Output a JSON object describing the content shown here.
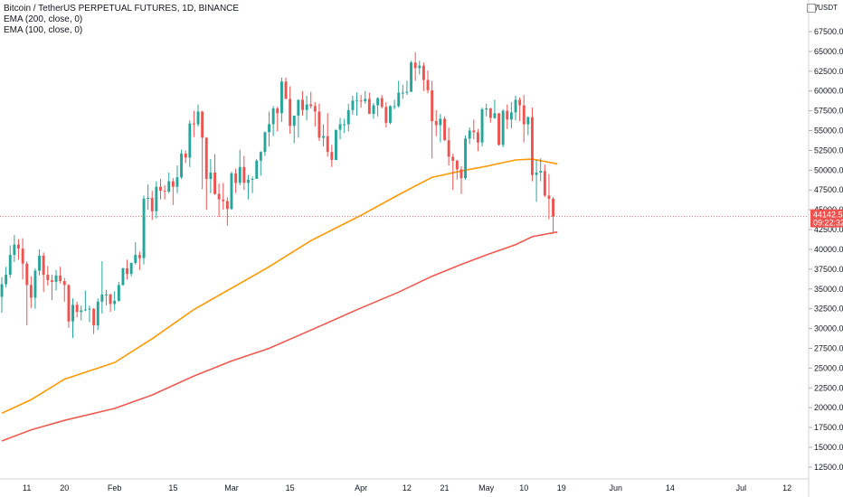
{
  "legend": {
    "title": "Bitcoin / TetherUS PERPETUAL FUTURES, 1D, BINANCE",
    "ema200": "EMA (200, close, 0)",
    "ema100": "EMA (100, close, 0)"
  },
  "currency": "USDT",
  "colors": {
    "up": "#26a69a",
    "down": "#ef5350",
    "ema100": "#ff9800",
    "ema200": "#f05a4f",
    "price_line": "#f06a6a",
    "axis_line": "#d1d4dc"
  },
  "price_label": "44142.51",
  "countdown_label": "09:22:32",
  "chart_data": {
    "type": "candlestick",
    "ylim": [
      11000,
      71500
    ],
    "yticks": [
      12500,
      15000,
      17500,
      20000,
      22500,
      25000,
      27500,
      30000,
      32500,
      35000,
      37500,
      40000,
      42500,
      45000,
      47500,
      50000,
      52500,
      55000,
      57500,
      60000,
      62500,
      65000,
      67500
    ],
    "ytick_labels": [
      "12500.00",
      "15000.00",
      "17500.00",
      "20000.00",
      "22500.00",
      "25000.00",
      "27500.00",
      "30000.00",
      "32500.00",
      "35000.00",
      "37500.00",
      "40000.00",
      "42500.00",
      "45000.00",
      "47500.00",
      "50000.00",
      "52500.00",
      "55000.00",
      "57500.00",
      "60000.00",
      "62500.00",
      "65000.00",
      "67500.00"
    ],
    "ytick_top_partial": "7",
    "xticks": [
      {
        "label": "11",
        "date": "2021-01-11"
      },
      {
        "label": "20",
        "date": "2021-01-20"
      },
      {
        "label": "Feb",
        "date": "2021-02-01"
      },
      {
        "label": "15",
        "date": "2021-02-15"
      },
      {
        "label": "Mar",
        "date": "2021-03-01"
      },
      {
        "label": "15",
        "date": "2021-03-15"
      },
      {
        "label": "Apr",
        "date": "2021-04-01"
      },
      {
        "label": "12",
        "date": "2021-04-12"
      },
      {
        "label": "21",
        "date": "2021-04-21"
      },
      {
        "label": "May",
        "date": "2021-05-01"
      },
      {
        "label": "10",
        "date": "2021-05-10"
      },
      {
        "label": "19",
        "date": "2021-05-19"
      },
      {
        "label": "Jun",
        "date": "2021-06-01"
      },
      {
        "label": "14",
        "date": "2021-06-14"
      },
      {
        "label": "Jul",
        "date": "2021-07-01"
      },
      {
        "label": "12",
        "date": "2021-07-12"
      }
    ],
    "x_start": "2021-01-05",
    "x_end": "2021-07-15",
    "current_price": 44142.51,
    "candles": [
      [
        "2021-01-05",
        34000,
        36500,
        32000,
        35600
      ],
      [
        "2021-01-06",
        35600,
        37800,
        35200,
        36800
      ],
      [
        "2021-01-07",
        36800,
        40500,
        36400,
        39300
      ],
      [
        "2021-01-08",
        39300,
        41800,
        38400,
        40600
      ],
      [
        "2021-01-09",
        40600,
        41300,
        38700,
        40100
      ],
      [
        "2021-01-10",
        40100,
        41400,
        36200,
        38200
      ],
      [
        "2021-01-11",
        38200,
        38500,
        30400,
        35500
      ],
      [
        "2021-01-12",
        35500,
        36600,
        32600,
        33900
      ],
      [
        "2021-01-13",
        33900,
        37600,
        32500,
        37300
      ],
      [
        "2021-01-14",
        37300,
        40000,
        36700,
        39200
      ],
      [
        "2021-01-15",
        39200,
        39600,
        34600,
        36800
      ],
      [
        "2021-01-16",
        36800,
        37900,
        35400,
        36100
      ],
      [
        "2021-01-17",
        36100,
        36800,
        33600,
        35900
      ],
      [
        "2021-01-18",
        35900,
        37400,
        34800,
        36700
      ],
      [
        "2021-01-19",
        36700,
        37800,
        35700,
        36000
      ],
      [
        "2021-01-20",
        36000,
        36400,
        33400,
        35500
      ],
      [
        "2021-01-21",
        35500,
        35600,
        30100,
        30900
      ],
      [
        "2021-01-22",
        30900,
        33800,
        28800,
        33000
      ],
      [
        "2021-01-23",
        33000,
        33400,
        31400,
        32100
      ],
      [
        "2021-01-24",
        32100,
        32900,
        31000,
        32300
      ],
      [
        "2021-01-25",
        32300,
        34800,
        32200,
        32400
      ],
      [
        "2021-01-26",
        32400,
        32900,
        30800,
        32500
      ],
      [
        "2021-01-27",
        32500,
        32600,
        29300,
        30400
      ],
      [
        "2021-01-28",
        30400,
        33800,
        29800,
        33400
      ],
      [
        "2021-01-29",
        33400,
        38500,
        31900,
        34300
      ],
      [
        "2021-01-30",
        34300,
        34900,
        32900,
        34300
      ],
      [
        "2021-01-31",
        34300,
        34400,
        32100,
        33100
      ],
      [
        "2021-02-01",
        33100,
        34700,
        32300,
        33500
      ],
      [
        "2021-02-02",
        33500,
        35900,
        33400,
        35500
      ],
      [
        "2021-02-03",
        35500,
        37700,
        35400,
        37600
      ],
      [
        "2021-02-04",
        37600,
        38700,
        36200,
        36900
      ],
      [
        "2021-02-05",
        36900,
        38300,
        36600,
        38300
      ],
      [
        "2021-02-06",
        38300,
        40900,
        38100,
        39300
      ],
      [
        "2021-02-07",
        39300,
        39700,
        37400,
        38900
      ],
      [
        "2021-02-08",
        38900,
        46800,
        38100,
        46400
      ],
      [
        "2021-02-09",
        46400,
        48200,
        45000,
        46500
      ],
      [
        "2021-02-10",
        46500,
        47400,
        43700,
        44800
      ],
      [
        "2021-02-11",
        44800,
        48600,
        43900,
        47900
      ],
      [
        "2021-02-12",
        47900,
        48900,
        46300,
        47400
      ],
      [
        "2021-02-13",
        47400,
        48100,
        46300,
        47300
      ],
      [
        "2021-02-14",
        47300,
        49700,
        47100,
        48600
      ],
      [
        "2021-02-15",
        48600,
        49000,
        45600,
        47900
      ],
      [
        "2021-02-16",
        47900,
        50600,
        47100,
        49100
      ],
      [
        "2021-02-17",
        49100,
        52600,
        48900,
        52100
      ],
      [
        "2021-02-18",
        52100,
        52500,
        50900,
        51600
      ],
      [
        "2021-02-19",
        51600,
        56300,
        50400,
        55900
      ],
      [
        "2021-02-20",
        55900,
        57500,
        54200,
        55800
      ],
      [
        "2021-02-21",
        55800,
        58300,
        55500,
        57400
      ],
      [
        "2021-02-22",
        57400,
        57500,
        47600,
        54100
      ],
      [
        "2021-02-23",
        54100,
        54200,
        45000,
        48900
      ],
      [
        "2021-02-24",
        48900,
        51400,
        47100,
        49700
      ],
      [
        "2021-02-25",
        49700,
        52000,
        46900,
        47000
      ],
      [
        "2021-02-26",
        47000,
        48300,
        44100,
        46300
      ],
      [
        "2021-02-27",
        46300,
        48400,
        45000,
        46100
      ],
      [
        "2021-02-28",
        46100,
        46600,
        43000,
        45100
      ],
      [
        "2021-03-01",
        45100,
        49800,
        45000,
        49600
      ],
      [
        "2021-03-02",
        49600,
        50200,
        47100,
        48400
      ],
      [
        "2021-03-03",
        48400,
        52600,
        48100,
        50400
      ],
      [
        "2021-03-04",
        50400,
        51800,
        47500,
        48400
      ],
      [
        "2021-03-05",
        48400,
        49400,
        46300,
        48800
      ],
      [
        "2021-03-06",
        48800,
        49200,
        47100,
        48900
      ],
      [
        "2021-03-07",
        48900,
        51400,
        48900,
        51200
      ],
      [
        "2021-03-08",
        51200,
        52400,
        49300,
        52300
      ],
      [
        "2021-03-09",
        52300,
        54900,
        51800,
        54800
      ],
      [
        "2021-03-10",
        54800,
        57400,
        53000,
        55800
      ],
      [
        "2021-03-11",
        55800,
        58100,
        54300,
        57800
      ],
      [
        "2021-03-12",
        57800,
        58000,
        54900,
        57200
      ],
      [
        "2021-03-13",
        57200,
        61700,
        56100,
        61200
      ],
      [
        "2021-03-14",
        61200,
        61700,
        59000,
        59000
      ],
      [
        "2021-03-15",
        59000,
        60600,
        54600,
        55600
      ],
      [
        "2021-03-16",
        55600,
        56900,
        53400,
        56900
      ],
      [
        "2021-03-17",
        56900,
        58900,
        54100,
        58900
      ],
      [
        "2021-03-18",
        58900,
        60000,
        56900,
        57600
      ],
      [
        "2021-03-19",
        57600,
        59400,
        56300,
        58300
      ],
      [
        "2021-03-20",
        58300,
        59900,
        57800,
        58100
      ],
      [
        "2021-03-21",
        58100,
        58600,
        55500,
        57400
      ],
      [
        "2021-03-22",
        57400,
        58400,
        53700,
        54100
      ],
      [
        "2021-03-23",
        54100,
        55800,
        53000,
        54300
      ],
      [
        "2021-03-24",
        54300,
        57200,
        51700,
        52300
      ],
      [
        "2021-03-25",
        52300,
        53200,
        50400,
        51300
      ],
      [
        "2021-03-26",
        51300,
        55100,
        51300,
        55100
      ],
      [
        "2021-03-27",
        55100,
        56600,
        53900,
        55800
      ],
      [
        "2021-03-28",
        55800,
        56500,
        54700,
        55800
      ],
      [
        "2021-03-29",
        55800,
        58400,
        54900,
        57600
      ],
      [
        "2021-03-30",
        57600,
        59400,
        57000,
        58800
      ],
      [
        "2021-03-31",
        58800,
        59800,
        56900,
        58800
      ],
      [
        "2021-04-01",
        58800,
        59500,
        57900,
        58700
      ],
      [
        "2021-04-02",
        58700,
        60000,
        58400,
        59000
      ],
      [
        "2021-04-03",
        59000,
        59800,
        57100,
        57100
      ],
      [
        "2021-04-04",
        57100,
        58500,
        56500,
        58200
      ],
      [
        "2021-04-05",
        58200,
        59200,
        56800,
        59100
      ],
      [
        "2021-04-06",
        59100,
        59500,
        57800,
        58000
      ],
      [
        "2021-04-07",
        58000,
        58600,
        55400,
        56000
      ],
      [
        "2021-04-08",
        56000,
        58200,
        55800,
        58100
      ],
      [
        "2021-04-09",
        58100,
        58900,
        57700,
        58100
      ],
      [
        "2021-04-10",
        58100,
        61300,
        57900,
        59800
      ],
      [
        "2021-04-11",
        59800,
        60800,
        59000,
        59800
      ],
      [
        "2021-04-12",
        59800,
        61300,
        59500,
        59900
      ],
      [
        "2021-04-13",
        59900,
        63800,
        59900,
        63600
      ],
      [
        "2021-04-14",
        63600,
        64900,
        61300,
        62900
      ],
      [
        "2021-04-15",
        62900,
        63800,
        62100,
        63200
      ],
      [
        "2021-04-16",
        63200,
        63600,
        60000,
        61400
      ],
      [
        "2021-04-17",
        61400,
        62600,
        59700,
        60100
      ],
      [
        "2021-04-18",
        60100,
        61300,
        51500,
        56200
      ],
      [
        "2021-04-19",
        56200,
        57600,
        54300,
        55700
      ],
      [
        "2021-04-20",
        55700,
        57100,
        53500,
        56500
      ],
      [
        "2021-04-21",
        56500,
        56800,
        53700,
        53800
      ],
      [
        "2021-04-22",
        53800,
        55400,
        50600,
        51700
      ],
      [
        "2021-04-23",
        51700,
        52100,
        47500,
        51200
      ],
      [
        "2021-04-24",
        51200,
        51300,
        48800,
        50100
      ],
      [
        "2021-04-25",
        50100,
        50500,
        47000,
        49000
      ],
      [
        "2021-04-26",
        49000,
        54400,
        48800,
        54000
      ],
      [
        "2021-04-27",
        54000,
        55400,
        53300,
        55000
      ],
      [
        "2021-04-28",
        55000,
        56400,
        53900,
        54800
      ],
      [
        "2021-04-29",
        54800,
        55200,
        52400,
        53500
      ],
      [
        "2021-04-30",
        53500,
        57900,
        53000,
        57700
      ],
      [
        "2021-05-01",
        57700,
        58400,
        56800,
        57800
      ],
      [
        "2021-05-02",
        57800,
        57900,
        56000,
        56600
      ],
      [
        "2021-05-03",
        56600,
        58900,
        56500,
        57200
      ],
      [
        "2021-05-04",
        57200,
        57200,
        53100,
        53200
      ],
      [
        "2021-05-05",
        53200,
        57700,
        52900,
        57500
      ],
      [
        "2021-05-06",
        57500,
        58300,
        55200,
        56400
      ],
      [
        "2021-05-07",
        56400,
        58600,
        55300,
        57300
      ],
      [
        "2021-05-08",
        57300,
        59400,
        56300,
        58900
      ],
      [
        "2021-05-09",
        58900,
        59200,
        56200,
        58200
      ],
      [
        "2021-05-10",
        58200,
        59500,
        53500,
        55800
      ],
      [
        "2021-05-11",
        55800,
        56800,
        54400,
        56700
      ],
      [
        "2021-05-12",
        56700,
        57900,
        48600,
        49400
      ],
      [
        "2021-05-13",
        49400,
        51300,
        46000,
        49700
      ],
      [
        "2021-05-14",
        49700,
        51500,
        48600,
        49900
      ],
      [
        "2021-05-15",
        49900,
        50700,
        46600,
        46800
      ],
      [
        "2021-05-16",
        46800,
        49500,
        43800,
        46400
      ],
      [
        "2021-05-17",
        46400,
        46600,
        42000,
        44142.51
      ]
    ],
    "series": [
      {
        "name": "EMA (100, close, 0)",
        "color": "#ff9800",
        "points": [
          [
            "2021-01-05",
            19300
          ],
          [
            "2021-01-12",
            21000
          ],
          [
            "2021-01-20",
            23600
          ],
          [
            "2021-02-01",
            25700
          ],
          [
            "2021-02-10",
            28700
          ],
          [
            "2021-02-20",
            32400
          ],
          [
            "2021-03-01",
            35100
          ],
          [
            "2021-03-10",
            37800
          ],
          [
            "2021-03-20",
            41100
          ],
          [
            "2021-04-01",
            44300
          ],
          [
            "2021-04-10",
            46900
          ],
          [
            "2021-04-18",
            49100
          ],
          [
            "2021-04-25",
            49900
          ],
          [
            "2021-05-01",
            50500
          ],
          [
            "2021-05-08",
            51300
          ],
          [
            "2021-05-12",
            51400
          ],
          [
            "2021-05-18",
            50800
          ]
        ]
      },
      {
        "name": "EMA (200, close, 0)",
        "color": "#f05a4f",
        "points": [
          [
            "2021-01-05",
            15800
          ],
          [
            "2021-01-12",
            17200
          ],
          [
            "2021-01-20",
            18400
          ],
          [
            "2021-02-01",
            19900
          ],
          [
            "2021-02-10",
            21600
          ],
          [
            "2021-02-20",
            24000
          ],
          [
            "2021-03-01",
            25900
          ],
          [
            "2021-03-10",
            27500
          ],
          [
            "2021-03-20",
            29800
          ],
          [
            "2021-04-01",
            32600
          ],
          [
            "2021-04-10",
            34600
          ],
          [
            "2021-04-18",
            36600
          ],
          [
            "2021-04-25",
            38100
          ],
          [
            "2021-05-01",
            39300
          ],
          [
            "2021-05-08",
            40600
          ],
          [
            "2021-05-12",
            41600
          ],
          [
            "2021-05-18",
            42200
          ]
        ]
      }
    ]
  }
}
